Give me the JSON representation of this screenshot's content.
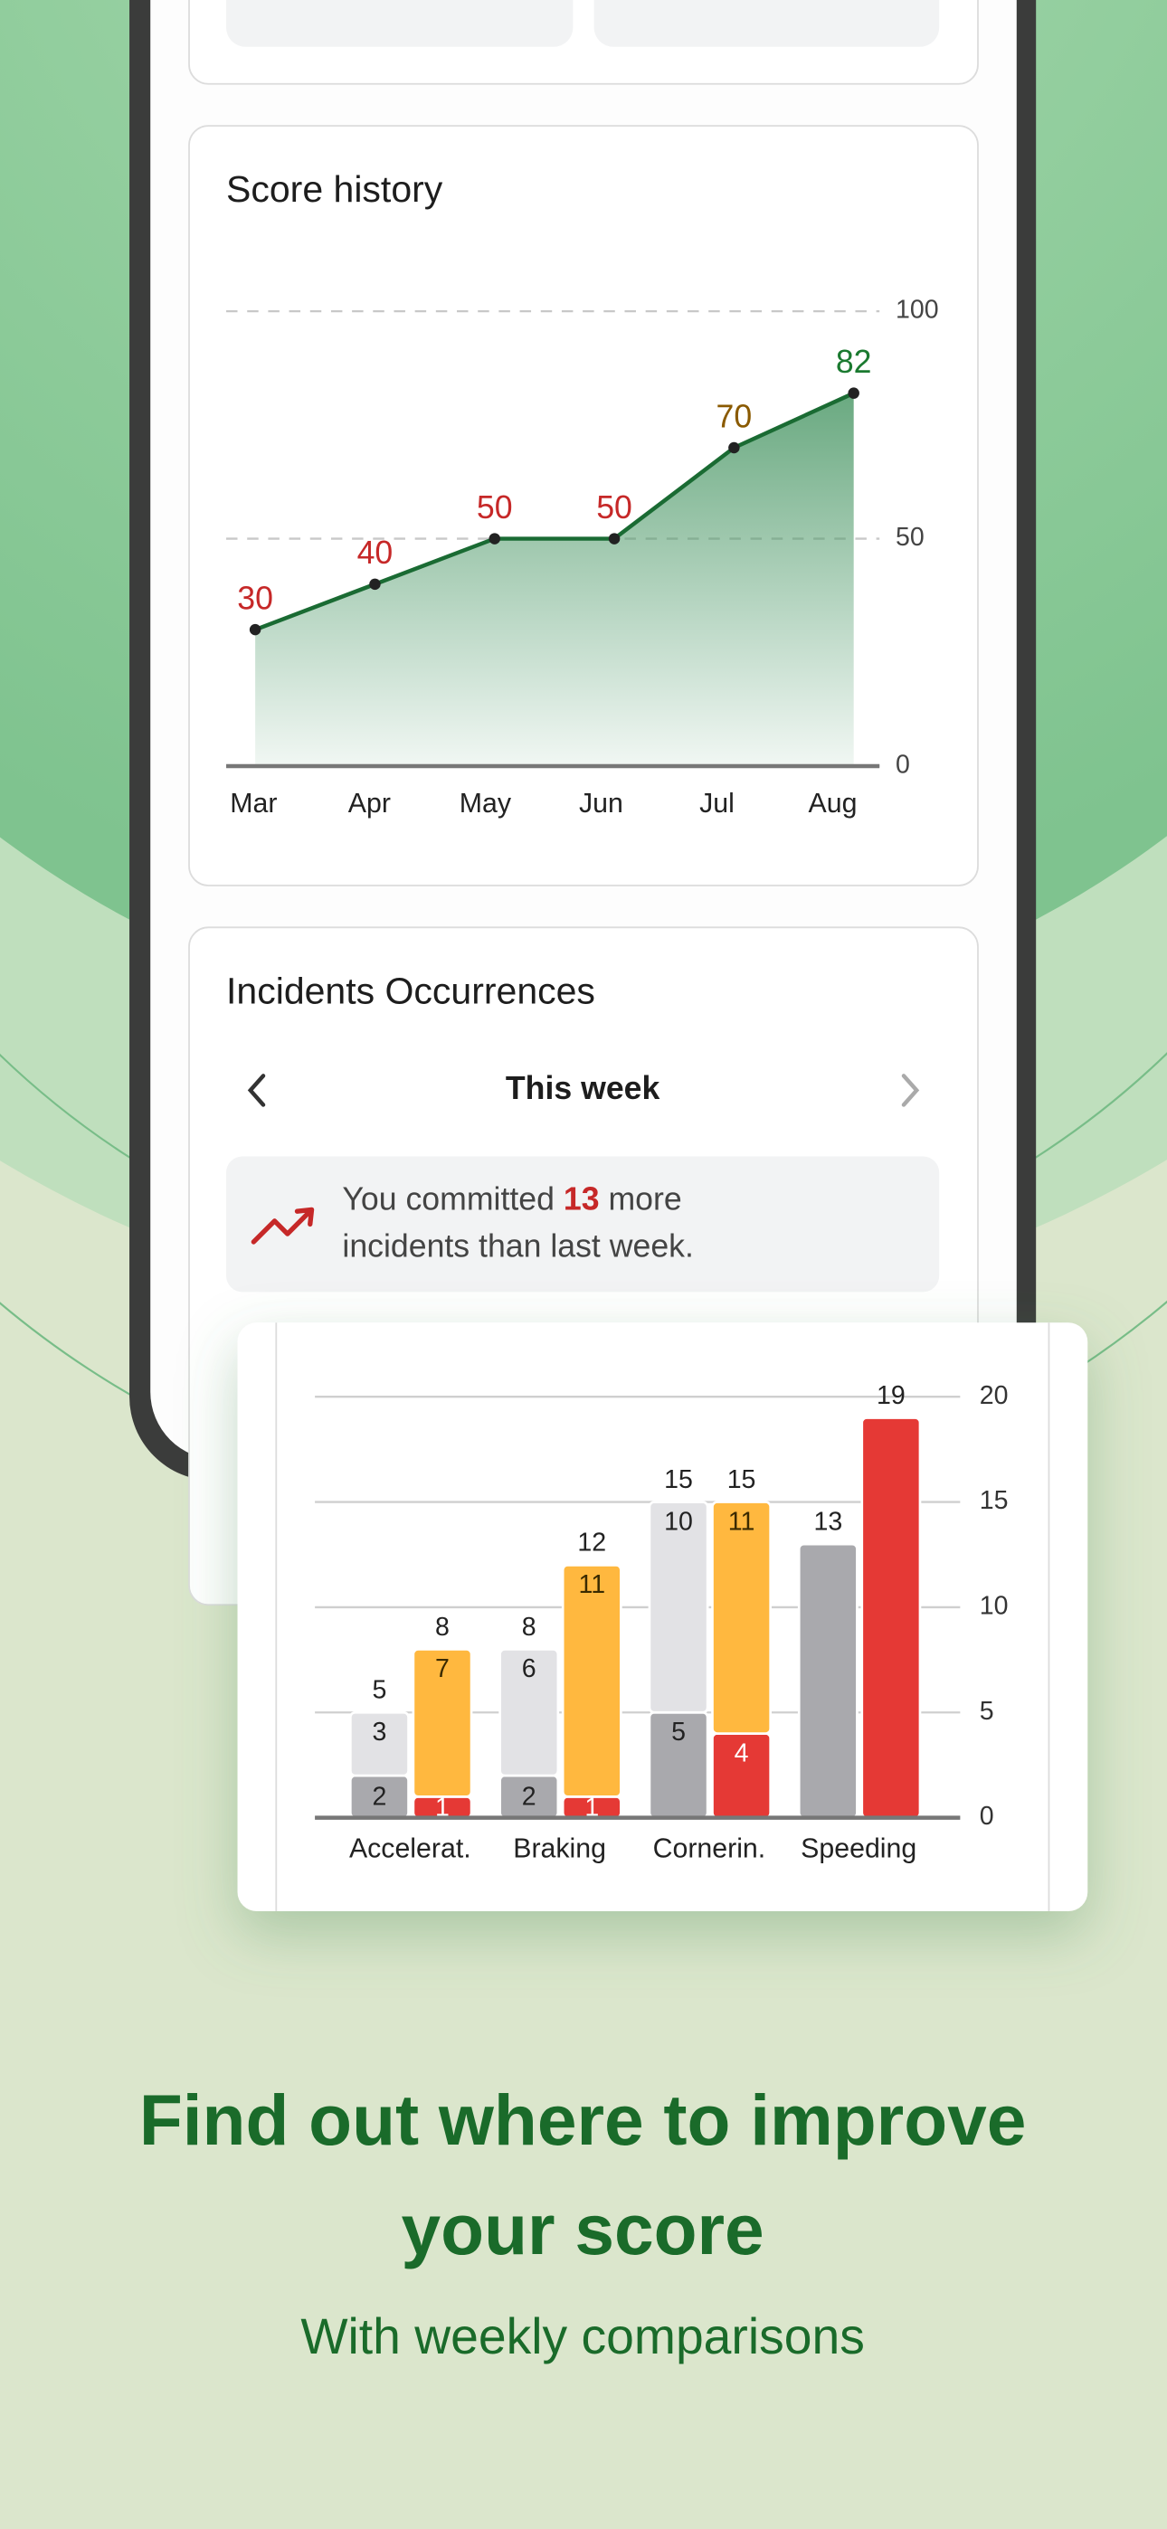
{
  "top_card": {},
  "score_card": {
    "title": "Score history"
  },
  "incidents_card": {
    "title": "Incidents Occurrences",
    "period": "This week",
    "message": {
      "before": "You committed",
      "count": 13,
      "after": "more",
      "line2": "incidents than last week."
    }
  },
  "headline": [
    "Find out where to improve",
    "your score"
  ],
  "subheadline": "With weekly comparisons",
  "chart_data": [
    {
      "type": "line",
      "categories": [
        "Mar",
        "Apr",
        "May",
        "Jun",
        "Jul",
        "Aug"
      ],
      "values": [
        30,
        40,
        50,
        50,
        70,
        82
      ],
      "label_colors": [
        "#c62828",
        "#c62828",
        "#c62828",
        "#c62828",
        "#8a5a00",
        "#1b7a30"
      ],
      "color": "#1a6b33",
      "ylim": [
        0,
        100
      ],
      "yticks": [
        0,
        50,
        100
      ],
      "grid": true
    },
    {
      "type": "bar",
      "categories": [
        "Accelerat.",
        "Braking",
        "Cornerin.",
        "Speeding"
      ],
      "series": [
        {
          "stack": 0,
          "color": "#a9a9ad",
          "label_color": "#222222",
          "values": [
            2,
            2,
            5,
            13
          ]
        },
        {
          "stack": 0,
          "color": "#e2e2e5",
          "label_color": "#222222",
          "values": [
            3,
            6,
            10,
            null
          ]
        },
        {
          "stack": 1,
          "color": "#e53935",
          "label_color": "#ffffff",
          "values": [
            1,
            1,
            4,
            19
          ]
        },
        {
          "stack": 1,
          "color": "#ffb83f",
          "label_color": "#3a2a00",
          "values": [
            7,
            11,
            11,
            null
          ]
        }
      ],
      "totals": [
        [
          5,
          8
        ],
        [
          8,
          12
        ],
        [
          15,
          15
        ],
        [
          13,
          19
        ]
      ],
      "ylim": [
        0,
        20
      ],
      "yticks": [
        0,
        5,
        10,
        15,
        20
      ],
      "grid": true
    }
  ]
}
